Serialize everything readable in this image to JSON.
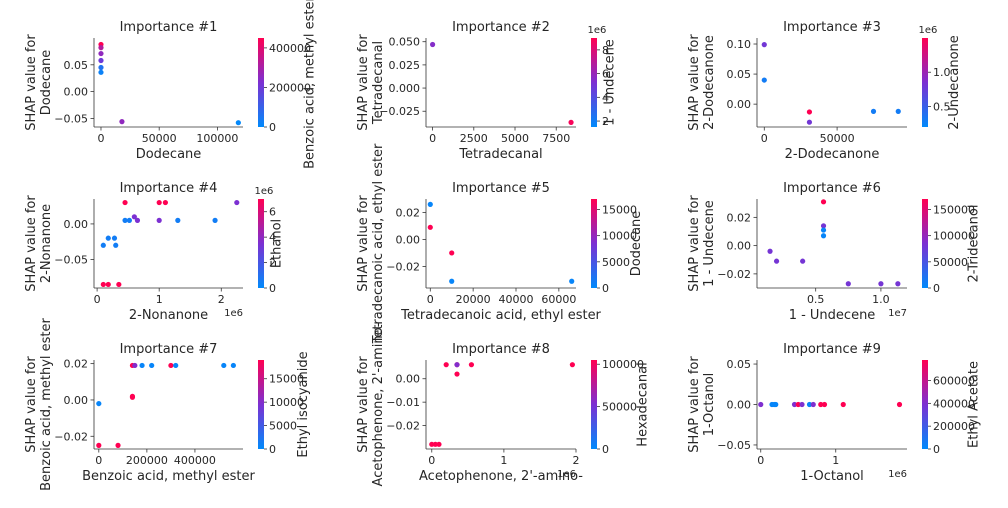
{
  "colors": {
    "low": "#008afb",
    "mid": "#7c30d2",
    "high": "#ff0052"
  },
  "chart_data": [
    {
      "type": "scatter",
      "title": "Importance #1",
      "xlabel": "Dodecane",
      "ylabel": "SHAP value for\nDodecane",
      "cbar_label": "Benzoic acid, methyl ester",
      "xlim": [
        -6000,
        122000
      ],
      "ylim": [
        -0.066,
        0.1
      ],
      "xticks": [
        0,
        50000,
        100000
      ],
      "yticks": [
        -0.05,
        0,
        0.05
      ],
      "xexp": "",
      "cbar_ticks": [
        0,
        200000,
        400000
      ],
      "cbar_range": [
        0,
        450000
      ],
      "cbar_exp": "",
      "points": [
        [
          0,
          0.088,
          450000
        ],
        [
          0,
          0.082,
          320000
        ],
        [
          0,
          0.071,
          260000
        ],
        [
          0,
          0.058,
          200000
        ],
        [
          0,
          0.045,
          60000
        ],
        [
          0,
          0.036,
          20000
        ],
        [
          18000,
          -0.056,
          260000
        ],
        [
          118000,
          -0.058,
          5000
        ]
      ]
    },
    {
      "type": "scatter",
      "title": "Importance #2",
      "xlabel": "Tetradecanal",
      "ylabel": "SHAP value for\nTetradecanal",
      "cbar_label": "1 - Undecene",
      "xlim": [
        -400,
        8700
      ],
      "ylim": [
        -0.042,
        0.054
      ],
      "xticks": [
        0,
        2500,
        5000,
        7500
      ],
      "yticks": [
        -0.025,
        0,
        0.025,
        0.05
      ],
      "xexp": "",
      "cbar_ticks": [
        2,
        4,
        6,
        8
      ],
      "cbar_range": [
        1.5,
        9
      ],
      "cbar_exp": "1e6",
      "points": [
        [
          0,
          0.047,
          5.5
        ],
        [
          8400,
          -0.037,
          8.8
        ]
      ]
    },
    {
      "type": "scatter",
      "title": "Importance #3",
      "xlabel": "2-Dodecanone",
      "ylabel": "SHAP value for\n2-Dodecanone",
      "cbar_label": "2-Undecanone",
      "xlim": [
        -5000,
        98000
      ],
      "ylim": [
        -0.038,
        0.11
      ],
      "xticks": [
        0,
        50000
      ],
      "yticks": [
        0,
        0.05,
        0.1
      ],
      "xexp": "",
      "cbar_ticks": [
        0.5,
        1.0
      ],
      "cbar_range": [
        0.2,
        1.5
      ],
      "cbar_exp": "1e6",
      "points": [
        [
          0,
          0.099,
          0.8
        ],
        [
          0,
          0.04,
          0.3
        ],
        [
          31000,
          -0.013,
          1.5
        ],
        [
          31000,
          -0.03,
          0.8
        ],
        [
          75000,
          -0.012,
          0.3
        ],
        [
          92000,
          -0.012,
          0.3
        ]
      ]
    },
    {
      "type": "scatter",
      "title": "Importance #4",
      "xlabel": "2-Nonanone",
      "ylabel": "SHAP value for\n2-Nonanone",
      "cbar_label": "Ethanol",
      "xlim": [
        -50000,
        2350000
      ],
      "ylim": [
        -0.09,
        0.035
      ],
      "xticks": [
        0,
        1,
        2
      ],
      "yticks": [
        -0.05,
        0
      ],
      "xexp": "1e6",
      "xscale": 1000000,
      "cbar_ticks": [
        0,
        2,
        4,
        6
      ],
      "cbar_range": [
        0,
        7
      ],
      "cbar_exp": "1e6",
      "points": [
        [
          100000,
          -0.085,
          7
        ],
        [
          180000,
          -0.085,
          7
        ],
        [
          100000,
          -0.03,
          0.5
        ],
        [
          180000,
          -0.02,
          0.5
        ],
        [
          280000,
          -0.02,
          0.5
        ],
        [
          300000,
          -0.03,
          0.5
        ],
        [
          350000,
          -0.085,
          7
        ],
        [
          450000,
          0.03,
          7
        ],
        [
          450000,
          0.005,
          0.5
        ],
        [
          520000,
          0.005,
          0.5
        ],
        [
          600000,
          0.01,
          3.5
        ],
        [
          650000,
          0.005,
          3.5
        ],
        [
          1000000,
          0.03,
          7
        ],
        [
          1100000,
          0.03,
          7
        ],
        [
          1000000,
          0.005,
          3.5
        ],
        [
          1300000,
          0.005,
          0.5
        ],
        [
          1900000,
          0.005,
          0.5
        ],
        [
          2250000,
          0.03,
          3.5
        ]
      ]
    },
    {
      "type": "scatter",
      "title": "Importance #5",
      "xlabel": "Tetradecanoic acid, ethyl ester",
      "ylabel": "SHAP value for\nTetradecanoic acid, ethyl ester",
      "cbar_label": "Dodecane",
      "xlim": [
        -2000,
        68000
      ],
      "ylim": [
        -0.036,
        0.03
      ],
      "xticks": [
        0,
        20000,
        40000,
        60000
      ],
      "yticks": [
        -0.02,
        0,
        0.02
      ],
      "xexp": "",
      "cbar_ticks": [
        0,
        5000,
        10000,
        15000
      ],
      "cbar_range": [
        0,
        17000
      ],
      "cbar_exp": "",
      "points": [
        [
          0,
          0.026,
          500
        ],
        [
          0,
          0.009,
          17000
        ],
        [
          10000,
          -0.01,
          17000
        ],
        [
          10000,
          -0.031,
          500
        ],
        [
          66000,
          -0.031,
          500
        ]
      ]
    },
    {
      "type": "scatter",
      "title": "Importance #6",
      "xlabel": "1 - Undecene",
      "ylabel": "SHAP value for\n1 - Undecene",
      "cbar_label": "2-Tridecanol",
      "xlim": [
        500000,
        12000000
      ],
      "ylim": [
        -0.03,
        0.033
      ],
      "xticks": [
        0.5,
        1.0
      ],
      "yticks": [
        -0.02,
        0,
        0.02
      ],
      "xexp": "1e7",
      "xscale": 10000000,
      "cbar_ticks": [
        0,
        50000,
        100000,
        150000
      ],
      "cbar_range": [
        0,
        170000
      ],
      "cbar_exp": "",
      "points": [
        [
          1500000,
          -0.004,
          80000
        ],
        [
          2000000,
          -0.011,
          80000
        ],
        [
          4000000,
          -0.011,
          80000
        ],
        [
          5600000,
          0.031,
          170000
        ],
        [
          5600000,
          0.014,
          80000
        ],
        [
          5600000,
          0.011,
          5000
        ],
        [
          5600000,
          0.007,
          5000
        ],
        [
          7500000,
          -0.027,
          80000
        ],
        [
          10000000,
          -0.027,
          80000
        ],
        [
          11300000,
          -0.027,
          80000
        ]
      ]
    },
    {
      "type": "scatter",
      "title": "Importance #7",
      "xlabel": "Benzoic acid, methyl ester",
      "ylabel": "SHAP value for\nBenzoic acid, methyl ester",
      "cbar_label": "Ethyl isocyanide",
      "xlim": [
        -20000,
        600000
      ],
      "ylim": [
        -0.027,
        0.022
      ],
      "xticks": [
        0,
        200000,
        400000
      ],
      "yticks": [
        -0.02,
        0,
        0.02
      ],
      "xexp": "",
      "cbar_ticks": [
        0,
        5000,
        10000,
        15000
      ],
      "cbar_range": [
        0,
        19000
      ],
      "cbar_exp": "",
      "points": [
        [
          0,
          -0.025,
          19000
        ],
        [
          0,
          -0.002,
          500
        ],
        [
          80000,
          -0.025,
          19000
        ],
        [
          140000,
          0.019,
          19000
        ],
        [
          150000,
          0.019,
          10000
        ],
        [
          180000,
          0.019,
          500
        ],
        [
          140000,
          0.002,
          19000
        ],
        [
          140000,
          0.0015,
          19000
        ],
        [
          220000,
          0.019,
          500
        ],
        [
          300000,
          0.019,
          19000
        ],
        [
          320000,
          0.019,
          500
        ],
        [
          520000,
          0.019,
          500
        ],
        [
          560000,
          0.019,
          500
        ]
      ]
    },
    {
      "type": "scatter",
      "title": "Importance #8",
      "xlabel": "Acetophenone, 2'-amino-",
      "ylabel": "SHAP value for\nAcetophenone, 2'-amino-",
      "cbar_label": "Hexadecanal",
      "xlim": [
        -80000,
        2000000
      ],
      "ylim": [
        -0.03,
        0.008
      ],
      "xticks": [
        0,
        1,
        2
      ],
      "yticks": [
        -0.02,
        -0.01,
        0
      ],
      "xexp": "1e6",
      "xscale": 1000000,
      "cbar_ticks": [
        0,
        50000,
        100000
      ],
      "cbar_range": [
        0,
        105000
      ],
      "cbar_exp": "",
      "points": [
        [
          0,
          -0.028,
          105000
        ],
        [
          50000,
          -0.028,
          105000
        ],
        [
          100000,
          -0.028,
          105000
        ],
        [
          200000,
          0.006,
          105000
        ],
        [
          350000,
          0.006,
          105000
        ],
        [
          350000,
          0.002,
          105000
        ],
        [
          350000,
          0.006,
          55000
        ],
        [
          550000,
          0.006,
          105000
        ],
        [
          1950000,
          0.006,
          105000
        ]
      ]
    },
    {
      "type": "scatter",
      "title": "Importance #9",
      "xlabel": "1-Octanol",
      "ylabel": "SHAP value for\n1-Octanol",
      "cbar_label": "Ethyl Acetate",
      "xlim": [
        -50000,
        1950000
      ],
      "ylim": [
        -0.055,
        0.055
      ],
      "xticks": [
        0,
        1
      ],
      "yticks": [
        -0.05,
        0,
        0.05
      ],
      "xexp": "1e6",
      "xscale": 1000000,
      "cbar_ticks": [
        0,
        200000,
        400000,
        600000
      ],
      "cbar_range": [
        0,
        780000
      ],
      "cbar_exp": "",
      "points": [
        [
          0,
          0,
          400000
        ],
        [
          150000,
          0,
          20000
        ],
        [
          180000,
          0,
          20000
        ],
        [
          200000,
          0,
          20000
        ],
        [
          450000,
          0,
          400000
        ],
        [
          500000,
          0,
          780000
        ],
        [
          550000,
          0,
          400000
        ],
        [
          650000,
          0,
          20000
        ],
        [
          700000,
          0,
          400000
        ],
        [
          800000,
          0,
          780000
        ],
        [
          850000,
          0,
          780000
        ],
        [
          1100000,
          0,
          780000
        ],
        [
          1850000,
          0,
          780000
        ]
      ]
    }
  ]
}
